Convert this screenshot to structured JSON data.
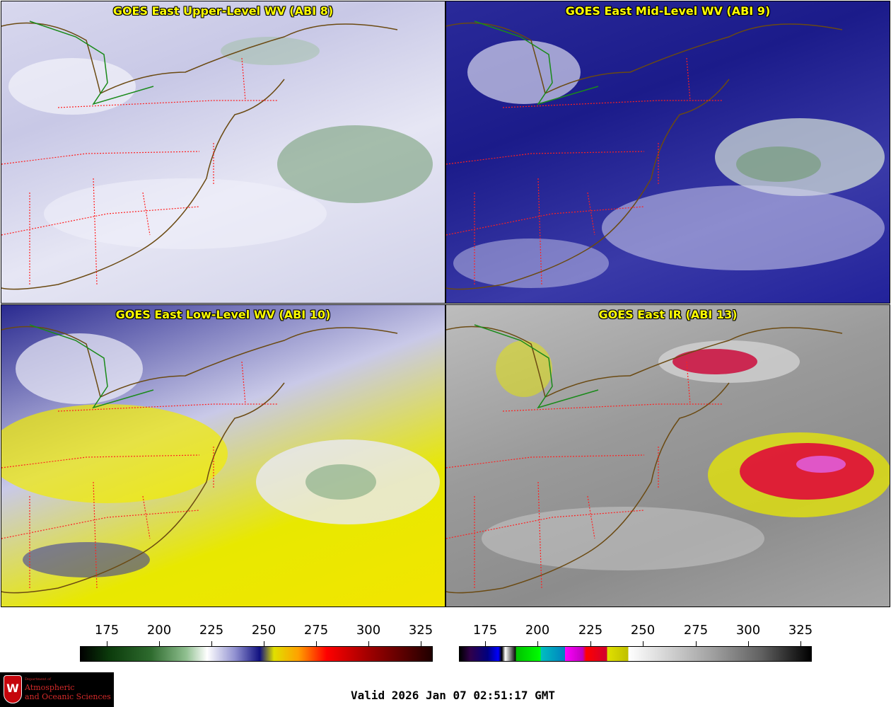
{
  "panels": [
    {
      "title": "GOES East Upper-Level WV (ABI 8)"
    },
    {
      "title": "GOES East Mid-Level WV (ABI 9)"
    },
    {
      "title": "GOES East Low-Level WV (ABI 10)"
    },
    {
      "title": "GOES East IR (ABI 13)"
    }
  ],
  "colorbar_wv": {
    "ticks": [
      "175",
      "200",
      "225",
      "250",
      "275",
      "300",
      "325"
    ]
  },
  "colorbar_ir": {
    "ticks": [
      "175",
      "200",
      "225",
      "250",
      "275",
      "300",
      "325"
    ]
  },
  "logo": {
    "crest_letter": "W",
    "dept_line": "Department of",
    "line1": "Atmospheric",
    "line2": "and Oceanic Sciences"
  },
  "valid_time": "Valid 2026 Jan 07 02:51:17 GMT"
}
